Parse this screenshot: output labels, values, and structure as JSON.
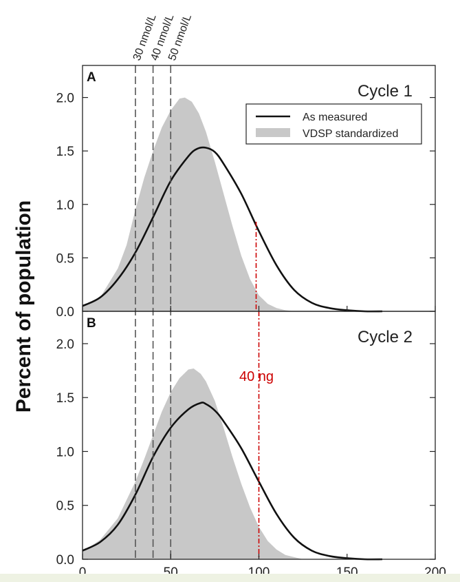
{
  "chart_data": {
    "type": "area",
    "ylabel": "Percent of population",
    "xlim": [
      0,
      200
    ],
    "xticks": [
      "0",
      "50",
      "100",
      "150",
      "200"
    ],
    "xtick_values": [
      0,
      50,
      100,
      150,
      200
    ],
    "reference_lines": [
      {
        "label": "30 nmol/L",
        "x": 30
      },
      {
        "label": "40 nmol/L",
        "x": 40
      },
      {
        "label": "50 nmol/L",
        "x": 50
      }
    ],
    "legend": {
      "position": "top-right",
      "measured_label": "As measured",
      "standardized_label": "VDSP standardized"
    },
    "panels": [
      {
        "letter": "A",
        "title": "Cycle 1",
        "ylim": [
          0,
          2.3
        ],
        "yticks": [
          "0.0",
          "0.5",
          "1.0",
          "1.5",
          "2.0"
        ],
        "ytick_values": [
          0,
          0.5,
          1.0,
          1.5,
          2.0
        ],
        "series": [
          {
            "name": "VDSP standardized",
            "style": "filled",
            "x": [
              0,
              10,
              20,
              25,
              30,
              35,
              40,
              45,
              50,
              55,
              58,
              62,
              66,
              70,
              75,
              80,
              85,
              90,
              95,
              100,
              105,
              110,
              115,
              120
            ],
            "y": [
              0.05,
              0.13,
              0.4,
              0.62,
              0.95,
              1.25,
              1.5,
              1.72,
              1.88,
              1.99,
              2.0,
              1.96,
              1.85,
              1.68,
              1.4,
              1.1,
              0.8,
              0.52,
              0.3,
              0.15,
              0.07,
              0.03,
              0.01,
              0.0
            ]
          },
          {
            "name": "As measured",
            "style": "line",
            "x": [
              0,
              10,
              20,
              30,
              40,
              50,
              60,
              65,
              70,
              75,
              80,
              90,
              100,
              110,
              120,
              130,
              140,
              150,
              160,
              170
            ],
            "y": [
              0.05,
              0.13,
              0.3,
              0.55,
              0.88,
              1.22,
              1.45,
              1.52,
              1.53,
              1.49,
              1.38,
              1.1,
              0.75,
              0.43,
              0.2,
              0.08,
              0.03,
              0.01,
              0.0,
              0.0
            ]
          }
        ]
      },
      {
        "letter": "B",
        "title": "Cycle 2",
        "ylim": [
          0,
          2.3
        ],
        "yticks": [
          "0.0",
          "0.5",
          "1.0",
          "1.5",
          "2.0"
        ],
        "ytick_values": [
          0,
          0.5,
          1.0,
          1.5,
          2.0
        ],
        "series": [
          {
            "name": "VDSP standardized",
            "style": "filled",
            "x": [
              0,
              10,
              20,
              30,
              35,
              40,
              45,
              50,
              55,
              60,
              63,
              67,
              70,
              75,
              80,
              85,
              90,
              95,
              100,
              105,
              110,
              115,
              120,
              125
            ],
            "y": [
              0.07,
              0.18,
              0.38,
              0.72,
              0.93,
              1.15,
              1.37,
              1.55,
              1.68,
              1.76,
              1.77,
              1.72,
              1.65,
              1.47,
              1.22,
              0.95,
              0.7,
              0.48,
              0.3,
              0.17,
              0.09,
              0.04,
              0.02,
              0.0
            ]
          },
          {
            "name": "As measured",
            "style": "line",
            "x": [
              0,
              10,
              20,
              30,
              40,
              50,
              60,
              67,
              70,
              75,
              80,
              90,
              100,
              110,
              120,
              130,
              140,
              150,
              160,
              170
            ],
            "y": [
              0.08,
              0.16,
              0.32,
              0.6,
              0.95,
              1.22,
              1.39,
              1.45,
              1.44,
              1.38,
              1.28,
              1.03,
              0.72,
              0.42,
              0.2,
              0.08,
              0.03,
              0.01,
              0.0,
              0.0
            ]
          }
        ]
      }
    ],
    "annotation": {
      "text": "40 ng",
      "x": 100,
      "color": "#cc0000"
    }
  }
}
